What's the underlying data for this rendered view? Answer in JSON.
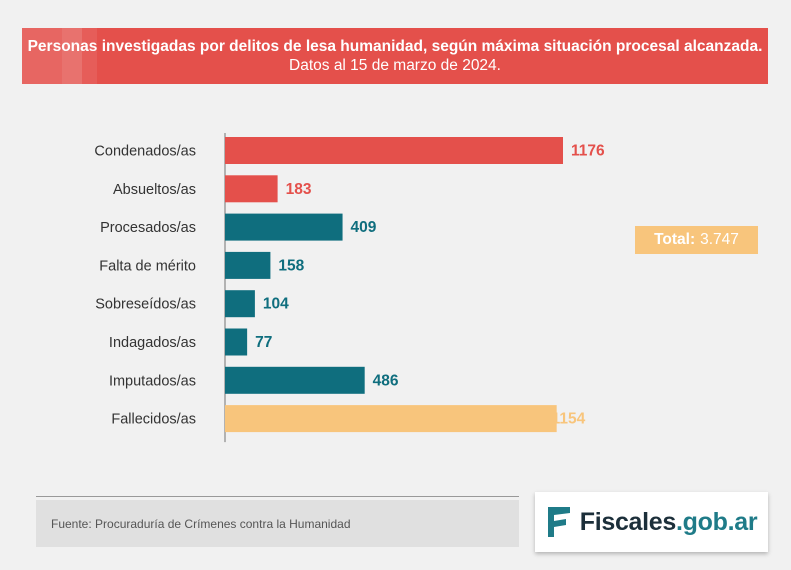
{
  "title": {
    "bold": "Personas investigadas por delitos de lesa humanidad, según máxima situación procesal alcanzada.",
    "light": "Datos al 15 de marzo de 2024."
  },
  "total": {
    "label": "Total:",
    "value": "3.747"
  },
  "footer": {
    "source": "Fuente: Procuraduría de Crímenes contra la Humanidad"
  },
  "logo": {
    "name": "Fiscales",
    "domain": ".gob.ar"
  },
  "colors": {
    "red": "#e4504b",
    "teal": "#0f6e7e",
    "yellow": "#f8c57c"
  },
  "chart_data": {
    "type": "bar",
    "orientation": "horizontal",
    "categories": [
      "Condenados/as",
      "Absueltos/as",
      "Procesados/as",
      "Falta de mérito",
      "Sobreseídos/as",
      "Indagados/as",
      "Imputados/as",
      "Fallecidos/as"
    ],
    "values": [
      1176,
      183,
      409,
      158,
      104,
      77,
      486,
      1154
    ],
    "bar_colors": [
      "red",
      "red",
      "teal",
      "teal",
      "teal",
      "teal",
      "teal",
      "yellow"
    ],
    "title": "Personas investigadas por delitos de lesa humanidad, según máxima situación procesal alcanzada. Datos al 15 de marzo de 2024.",
    "xlabel": "",
    "ylabel": "",
    "xlim": [
      0,
      1176
    ],
    "grid": false
  }
}
